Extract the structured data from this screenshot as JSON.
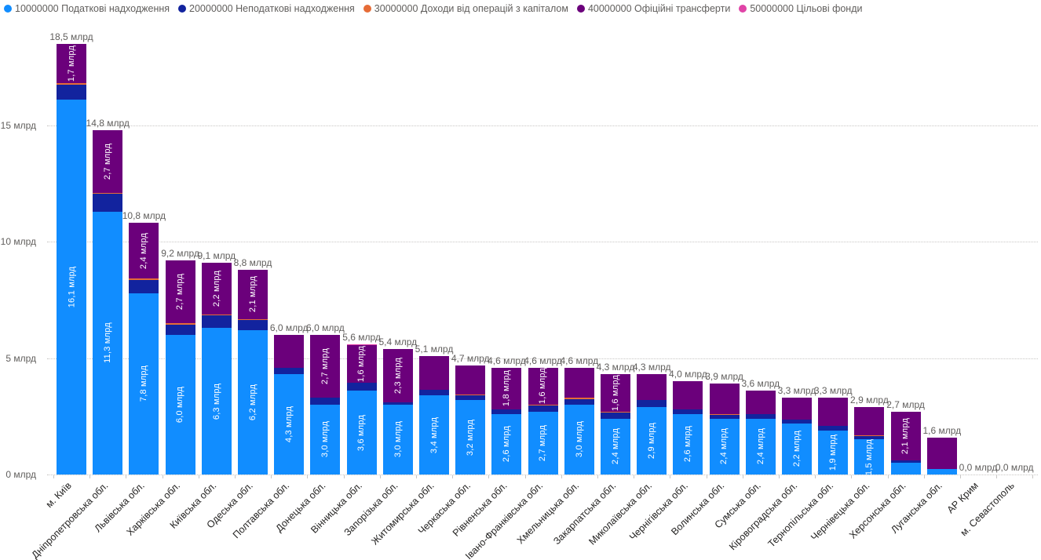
{
  "chart_data": {
    "type": "bar",
    "stacked": true,
    "title": "",
    "value_unit": "млрд",
    "ylim": [
      0,
      19
    ],
    "grid": "horizontal-dotted",
    "legend_position": "top-left",
    "y_ticks": [
      {
        "value": 0,
        "label": "0 млрд"
      },
      {
        "value": 5,
        "label": "5 млрд"
      },
      {
        "value": 10,
        "label": "10 млрд"
      },
      {
        "value": 15,
        "label": "15 млрд"
      }
    ],
    "series": [
      {
        "name": "10000000 Податкові надходження",
        "color": "#118DFF"
      },
      {
        "name": "20000000 Неподаткові надходження",
        "color": "#12239E"
      },
      {
        "name": "30000000 Доходи від операцій з капіталом",
        "color": "#E66C37"
      },
      {
        "name": "40000000 Офіційні трансферти",
        "color": "#6B007B"
      },
      {
        "name": "50000000 Цільові фонди",
        "color": "#E044A7"
      }
    ],
    "bars": [
      {
        "category": "м. Київ",
        "total_label": "18,5 млрд",
        "values": [
          16.1,
          0.65,
          0.06,
          1.7,
          0
        ],
        "segment_labels": [
          "16,1 млрд",
          null,
          null,
          "1,7 млрд",
          null
        ]
      },
      {
        "category": "Дніпропетровська обл.",
        "total_label": "14,8 млрд",
        "values": [
          11.3,
          0.75,
          0.06,
          2.7,
          0
        ],
        "segment_labels": [
          "11,3 млрд",
          null,
          null,
          "2,7 млрд",
          null
        ]
      },
      {
        "category": "Львівська обл.",
        "total_label": "10,8 млрд",
        "values": [
          7.8,
          0.55,
          0.06,
          2.4,
          0
        ],
        "segment_labels": [
          "7,8 млрд",
          null,
          null,
          "2,4 млрд",
          null
        ]
      },
      {
        "category": "Харківська обл.",
        "total_label": "9,2 млрд",
        "values": [
          6.0,
          0.45,
          0.06,
          2.7,
          0
        ],
        "segment_labels": [
          "6,0 млрд",
          null,
          null,
          "2,7 млрд",
          null
        ]
      },
      {
        "category": "Київська обл.",
        "total_label": "9,1 млрд",
        "values": [
          6.3,
          0.55,
          0.04,
          2.2,
          0
        ],
        "segment_labels": [
          "6,3 млрд",
          null,
          null,
          "2,2 млрд",
          null
        ]
      },
      {
        "category": "Одеська обл.",
        "total_label": "8,8 млрд",
        "values": [
          6.2,
          0.45,
          0.04,
          2.1,
          0
        ],
        "segment_labels": [
          "6,2 млрд",
          null,
          null,
          "2,1 млрд",
          null
        ]
      },
      {
        "category": "Полтавська обл.",
        "total_label": "6,0 млрд",
        "values": [
          4.3,
          0.3,
          0,
          1.4,
          0
        ],
        "segment_labels": [
          "4,3 млрд",
          null,
          null,
          null,
          null
        ]
      },
      {
        "category": "Донецька обл.",
        "total_label": "6,0 млрд",
        "values": [
          3.0,
          0.3,
          0,
          2.7,
          0
        ],
        "segment_labels": [
          "3,0 млрд",
          null,
          null,
          "2,7 млрд",
          null
        ]
      },
      {
        "category": "Вінницька обл.",
        "total_label": "5,6 млрд",
        "values": [
          3.6,
          0.35,
          0,
          1.6,
          0.05
        ],
        "segment_labels": [
          "3,6 млрд",
          null,
          null,
          "1,6 млрд",
          null
        ]
      },
      {
        "category": "Запорізька обл.",
        "total_label": "5,4 млрд",
        "values": [
          3.0,
          0.1,
          0,
          2.3,
          0
        ],
        "segment_labels": [
          "3,0 млрд",
          null,
          null,
          "2,3 млрд",
          null
        ]
      },
      {
        "category": "Житомирська обл.",
        "total_label": "5,1 млрд",
        "values": [
          3.4,
          0.25,
          0,
          1.45,
          0
        ],
        "segment_labels": [
          "3,4 млрд",
          null,
          null,
          null,
          null
        ]
      },
      {
        "category": "Черкаська обл.",
        "total_label": "4,7 млрд",
        "values": [
          3.2,
          0.2,
          0.05,
          1.25,
          0
        ],
        "segment_labels": [
          "3,2 млрд",
          null,
          null,
          null,
          null
        ]
      },
      {
        "category": "Рівненська обл.",
        "total_label": "4,6 млрд",
        "values": [
          2.6,
          0.2,
          0,
          1.8,
          0
        ],
        "segment_labels": [
          "2,6 млрд",
          null,
          null,
          "1,8 млрд",
          null
        ]
      },
      {
        "category": "Івано-Франківська обл.",
        "total_label": "4,6 млрд",
        "values": [
          2.7,
          0.25,
          0.05,
          1.6,
          0
        ],
        "segment_labels": [
          "2,7 млрд",
          null,
          null,
          "1,6 млрд",
          null
        ]
      },
      {
        "category": "Хмельницька обл.",
        "total_label": "4,6 млрд",
        "values": [
          3.0,
          0.25,
          0.05,
          1.3,
          0
        ],
        "segment_labels": [
          "3,0 млрд",
          null,
          null,
          null,
          null
        ]
      },
      {
        "category": "Закарпатська обл.",
        "total_label": "4,3 млрд",
        "values": [
          2.4,
          0.25,
          0.05,
          1.6,
          0
        ],
        "segment_labels": [
          "2,4 млрд",
          null,
          null,
          "1,6 млрд",
          null
        ]
      },
      {
        "category": "Миколаївська обл.",
        "total_label": "4,3 млрд",
        "values": [
          2.9,
          0.3,
          0,
          1.1,
          0
        ],
        "segment_labels": [
          "2,9 млрд",
          null,
          null,
          null,
          null
        ]
      },
      {
        "category": "Чернігівська обл.",
        "total_label": "4,0 млрд",
        "values": [
          2.6,
          0.2,
          0,
          1.2,
          0
        ],
        "segment_labels": [
          "2,6 млрд",
          null,
          null,
          null,
          null
        ]
      },
      {
        "category": "Волинська обл.",
        "total_label": "3,9 млрд",
        "values": [
          2.4,
          0.15,
          0.05,
          1.3,
          0
        ],
        "segment_labels": [
          "2,4 млрд",
          null,
          null,
          null,
          null
        ]
      },
      {
        "category": "Сумська обл.",
        "total_label": "3,6 млрд",
        "values": [
          2.4,
          0.2,
          0,
          1.0,
          0
        ],
        "segment_labels": [
          "2,4 млрд",
          null,
          null,
          null,
          null
        ]
      },
      {
        "category": "Кіровоградська обл.",
        "total_label": "3,3 млрд",
        "values": [
          2.2,
          0.15,
          0,
          0.95,
          0
        ],
        "segment_labels": [
          "2,2 млрд",
          null,
          null,
          null,
          null
        ]
      },
      {
        "category": "Тернопільська обл.",
        "total_label": "3,3 млрд",
        "values": [
          1.9,
          0.2,
          0,
          1.2,
          0
        ],
        "segment_labels": [
          "1,9 млрд",
          null,
          null,
          null,
          null
        ]
      },
      {
        "category": "Чернівецька обл.",
        "total_label": "2,9 млрд",
        "values": [
          1.5,
          0.15,
          0.05,
          1.2,
          0
        ],
        "segment_labels": [
          "1,5 млрд",
          null,
          null,
          null,
          null
        ]
      },
      {
        "category": "Херсонська обл.",
        "total_label": "2,7 млрд",
        "values": [
          0.5,
          0.1,
          0,
          2.1,
          0
        ],
        "segment_labels": [
          null,
          null,
          null,
          "2,1 млрд",
          null
        ]
      },
      {
        "category": "Луганська обл.",
        "total_label": "1,6 млрд",
        "values": [
          0.25,
          0,
          0,
          1.35,
          0
        ],
        "segment_labels": [
          null,
          null,
          null,
          null,
          null
        ]
      },
      {
        "category": "АР Крим",
        "total_label": "0,0 млрд",
        "values": [
          0,
          0,
          0,
          0,
          0
        ],
        "segment_labels": [
          null,
          null,
          null,
          null,
          null
        ]
      },
      {
        "category": "м. Севастополь",
        "total_label": "0,0 млрд",
        "values": [
          0,
          0,
          0,
          0,
          0
        ],
        "segment_labels": [
          null,
          null,
          null,
          null,
          null
        ]
      }
    ]
  }
}
